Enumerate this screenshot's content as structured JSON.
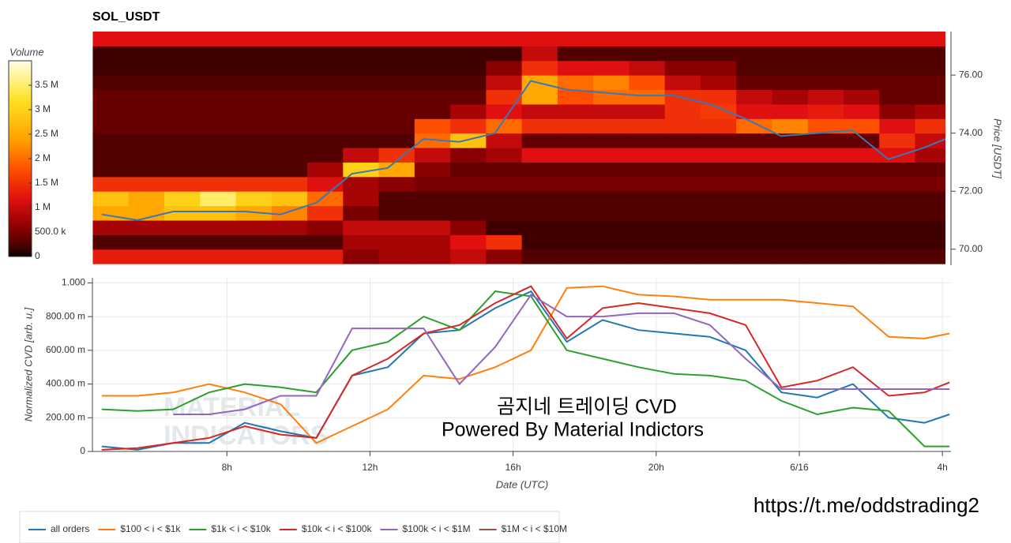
{
  "chart_data": [
    {
      "type": "heatmap",
      "title": "SOL_USDT",
      "xlim": [
        4.24,
        28.1
      ],
      "ylim": [
        69.45,
        77.5
      ],
      "x_bins": [
        4.25,
        5.25,
        6.25,
        7.25,
        8.25,
        9.25,
        10.25,
        11.25,
        12.25,
        13.25,
        14.25,
        15.25,
        16.25,
        17.25,
        18.25,
        19.25,
        20.25,
        21.25,
        22.25,
        23.25,
        24.25,
        25.25,
        26.25,
        27.25,
        28.25
      ],
      "y_bins": [
        69.5,
        70,
        70.5,
        71,
        71.5,
        72,
        72.5,
        73,
        73.5,
        74,
        74.5,
        75,
        75.5,
        76,
        76.5,
        77,
        77.5
      ],
      "z": [
        [
          1300000.0,
          1300000.0,
          1300000.0,
          1300000.0,
          1300000.0,
          1300000.0,
          1300000.0,
          600000.0,
          800000.0,
          800000.0,
          1000000.0,
          600000.0,
          300000.0,
          300000.0,
          300000.0,
          300000.0,
          300000.0,
          300000.0,
          300000.0,
          300000.0,
          300000.0,
          300000.0,
          300000.0,
          300000.0
        ],
        [
          300000.0,
          300000.0,
          300000.0,
          300000.0,
          300000.0,
          300000.0,
          300000.0,
          800000.0,
          800000.0,
          800000.0,
          1200000.0,
          1500000.0,
          200000.0,
          200000.0,
          200000.0,
          200000.0,
          200000.0,
          200000.0,
          200000.0,
          200000.0,
          200000.0,
          200000.0,
          200000.0,
          200000.0
        ],
        [
          800000.0,
          800000.0,
          800000.0,
          800000.0,
          800000.0,
          800000.0,
          600000.0,
          1000000.0,
          1000000.0,
          1000000.0,
          600000.0,
          200000.0,
          200000.0,
          200000.0,
          200000.0,
          200000.0,
          200000.0,
          200000.0,
          200000.0,
          200000.0,
          200000.0,
          200000.0,
          200000.0,
          200000.0
        ],
        [
          2500000.0,
          2500000.0,
          2800000.0,
          2800000.0,
          2500000.0,
          2200000.0,
          1500000.0,
          500000.0,
          300000.0,
          300000.0,
          300000.0,
          300000.0,
          300000.0,
          300000.0,
          300000.0,
          300000.0,
          300000.0,
          300000.0,
          300000.0,
          300000.0,
          300000.0,
          300000.0,
          300000.0,
          300000.0
        ],
        [
          2800000.0,
          2500000.0,
          3000000.0,
          3500000.0,
          3000000.0,
          2800000.0,
          2000000.0,
          800000.0,
          300000.0,
          300000.0,
          300000.0,
          300000.0,
          300000.0,
          300000.0,
          300000.0,
          300000.0,
          300000.0,
          300000.0,
          300000.0,
          300000.0,
          300000.0,
          300000.0,
          300000.0,
          300000.0
        ],
        [
          1500000.0,
          1500000.0,
          1500000.0,
          1500000.0,
          1500000.0,
          1500000.0,
          1200000.0,
          800000.0,
          600000.0,
          500000.0,
          500000.0,
          500000.0,
          500000.0,
          500000.0,
          500000.0,
          500000.0,
          500000.0,
          500000.0,
          500000.0,
          500000.0,
          500000.0,
          500000.0,
          500000.0,
          500000.0
        ],
        [
          300000.0,
          300000.0,
          300000.0,
          300000.0,
          300000.0,
          300000.0,
          800000.0,
          3000000.0,
          2500000.0,
          600000.0,
          400000.0,
          400000.0,
          400000.0,
          400000.0,
          400000.0,
          400000.0,
          400000.0,
          400000.0,
          400000.0,
          400000.0,
          400000.0,
          400000.0,
          400000.0,
          400000.0
        ],
        [
          300000.0,
          300000.0,
          300000.0,
          300000.0,
          300000.0,
          300000.0,
          300000.0,
          1000000.0,
          1500000.0,
          1000000.0,
          600000.0,
          800000.0,
          1200000.0,
          1200000.0,
          1200000.0,
          1200000.0,
          1200000.0,
          1200000.0,
          1200000.0,
          1200000.0,
          1200000.0,
          1200000.0,
          1200000.0,
          800000.0
        ],
        [
          300000.0,
          300000.0,
          300000.0,
          300000.0,
          300000.0,
          300000.0,
          300000.0,
          300000.0,
          300000.0,
          2000000.0,
          2800000.0,
          1000000.0,
          400000.0,
          400000.0,
          400000.0,
          400000.0,
          400000.0,
          400000.0,
          400000.0,
          400000.0,
          400000.0,
          400000.0,
          1500000.0,
          1000000.0
        ],
        [
          400000.0,
          400000.0,
          400000.0,
          400000.0,
          400000.0,
          400000.0,
          400000.0,
          400000.0,
          400000.0,
          1800000.0,
          1500000.0,
          2000000.0,
          1500000.0,
          1500000.0,
          1500000.0,
          1500000.0,
          1500000.0,
          1500000.0,
          2000000.0,
          2200000.0,
          1800000.0,
          1800000.0,
          1200000.0,
          1500000.0
        ],
        [
          400000.0,
          400000.0,
          400000.0,
          400000.0,
          400000.0,
          400000.0,
          400000.0,
          400000.0,
          400000.0,
          400000.0,
          800000.0,
          1200000.0,
          1000000.0,
          1000000.0,
          1000000.0,
          1000000.0,
          1500000.0,
          1600000.0,
          1200000.0,
          1200000.0,
          1300000.0,
          1200000.0,
          600000.0,
          800000.0
        ],
        [
          400000.0,
          400000.0,
          400000.0,
          400000.0,
          400000.0,
          400000.0,
          400000.0,
          400000.0,
          400000.0,
          400000.0,
          400000.0,
          1500000.0,
          2500000.0,
          1800000.0,
          2000000.0,
          2000000.0,
          1500000.0,
          1500000.0,
          1000000.0,
          800000.0,
          1000000.0,
          800000.0,
          400000.0,
          400000.0
        ],
        [
          300000.0,
          300000.0,
          300000.0,
          300000.0,
          300000.0,
          300000.0,
          300000.0,
          300000.0,
          300000.0,
          300000.0,
          300000.0,
          1000000.0,
          2500000.0,
          2000000.0,
          2200000.0,
          1800000.0,
          1000000.0,
          800000.0,
          400000.0,
          400000.0,
          400000.0,
          400000.0,
          400000.0,
          400000.0
        ],
        [
          200000.0,
          200000.0,
          200000.0,
          200000.0,
          200000.0,
          200000.0,
          200000.0,
          200000.0,
          200000.0,
          200000.0,
          200000.0,
          600000.0,
          1500000.0,
          1200000.0,
          1200000.0,
          1000000.0,
          600000.0,
          600000.0,
          300000.0,
          300000.0,
          300000.0,
          300000.0,
          300000.0,
          300000.0
        ],
        [
          200000.0,
          200000.0,
          200000.0,
          200000.0,
          200000.0,
          200000.0,
          200000.0,
          200000.0,
          200000.0,
          200000.0,
          200000.0,
          200000.0,
          1000000.0,
          300000.0,
          300000.0,
          300000.0,
          300000.0,
          300000.0,
          300000.0,
          300000.0,
          300000.0,
          300000.0,
          300000.0,
          300000.0
        ],
        [
          1200000.0,
          1200000.0,
          1200000.0,
          1200000.0,
          1200000.0,
          1200000.0,
          1200000.0,
          1200000.0,
          1200000.0,
          1200000.0,
          1200000.0,
          1200000.0,
          1200000.0,
          1200000.0,
          1200000.0,
          1200000.0,
          1200000.0,
          1200000.0,
          1200000.0,
          1200000.0,
          1200000.0,
          1200000.0,
          1200000.0,
          1200000.0
        ]
      ],
      "zlim": [
        0,
        4000000
      ],
      "zlabel": "Volume",
      "zticks": [
        0,
        {
          "value": 500000,
          "label": "500.0 k"
        },
        {
          "value": 1000000,
          "label": "1 M"
        },
        {
          "value": 1500000,
          "label": "1.5 M"
        },
        {
          "value": 2000000,
          "label": "2 M"
        },
        {
          "value": 2500000,
          "label": "2.5 M"
        },
        {
          "value": 3000000,
          "label": "3 M"
        },
        {
          "value": 3500000,
          "label": "3.5 M"
        }
      ],
      "ylabel": "Price [USDT]",
      "yticks": [
        {
          "value": 70,
          "label": "70.00"
        },
        {
          "value": 72,
          "label": "72.00"
        },
        {
          "value": 74,
          "label": "74.00"
        },
        {
          "value": 76,
          "label": "76.00"
        }
      ],
      "price": {
        "color": "#3a78b5",
        "x": [
          4.5,
          5.5,
          6.5,
          7.5,
          8.5,
          9.5,
          10.5,
          11.5,
          12.5,
          13.5,
          14.5,
          15.5,
          16.5,
          17.5,
          18.5,
          19.5,
          20.5,
          21.5,
          22.5,
          23.5,
          24.5,
          25.5,
          26.5,
          27.5,
          28.1
        ],
        "values": [
          71.2,
          71.0,
          71.3,
          71.3,
          71.3,
          71.2,
          71.6,
          72.6,
          72.8,
          73.8,
          73.7,
          74.0,
          75.8,
          75.5,
          75.4,
          75.3,
          75.3,
          75.0,
          74.5,
          73.9,
          74.0,
          74.1,
          73.1,
          73.5,
          73.8
        ]
      }
    },
    {
      "type": "line",
      "xlabel": "Date (UTC)",
      "ylabel": "Normalized CVD [arb. u.]",
      "xlim": [
        4.24,
        28.24
      ],
      "ylim": [
        0,
        1.03
      ],
      "xticks": [
        {
          "value": 8,
          "label": "8h"
        },
        {
          "value": 12,
          "label": "12h"
        },
        {
          "value": 16,
          "label": "16h"
        },
        {
          "value": 20,
          "label": "20h"
        },
        {
          "value": 24,
          "label": "6/16"
        },
        {
          "value": 28,
          "label": "4h"
        }
      ],
      "yticks": [
        0,
        {
          "value": 0.2,
          "label": "200.00 m"
        },
        {
          "value": 0.4,
          "label": "400.00 m"
        },
        {
          "value": 0.6,
          "label": "600.00 m"
        },
        {
          "value": 0.8,
          "label": "800.00 m"
        },
        {
          "value": 1,
          "label": "1.000"
        }
      ],
      "grid": true,
      "legend": "bottom-left",
      "x": [
        4.5,
        5.5,
        6.5,
        7.5,
        8.5,
        9.5,
        10.5,
        11.5,
        12.5,
        13.5,
        14.5,
        15.5,
        16.5,
        17.5,
        18.5,
        19.5,
        20.5,
        21.5,
        22.5,
        23.5,
        24.5,
        25.5,
        26.5,
        27.5,
        28.2
      ],
      "series": [
        {
          "name": "all orders",
          "color": "#1f77b4",
          "values": [
            0.03,
            0.01,
            0.05,
            0.05,
            0.17,
            0.12,
            0.08,
            0.45,
            0.5,
            0.7,
            0.72,
            0.85,
            0.95,
            0.65,
            0.78,
            0.72,
            0.7,
            0.68,
            0.6,
            0.35,
            0.32,
            0.4,
            0.2,
            0.17,
            0.22
          ]
        },
        {
          "name": "$100 < i < $1k",
          "color": "#ff7f0e",
          "values": [
            0.33,
            0.33,
            0.35,
            0.4,
            0.35,
            0.28,
            0.05,
            0.15,
            0.25,
            0.45,
            0.43,
            0.5,
            0.6,
            0.97,
            0.98,
            0.93,
            0.92,
            0.9,
            0.9,
            0.9,
            0.88,
            0.86,
            0.68,
            0.67,
            0.7
          ]
        },
        {
          "name": "$1k < i < $10k",
          "color": "#2ca02c",
          "values": [
            0.25,
            0.24,
            0.25,
            0.35,
            0.4,
            0.38,
            0.35,
            0.6,
            0.65,
            0.8,
            0.72,
            0.95,
            0.92,
            0.6,
            0.55,
            0.5,
            0.46,
            0.45,
            0.42,
            0.3,
            0.22,
            0.26,
            0.24,
            0.03,
            0.03
          ]
        },
        {
          "name": "$10k < i < $100k",
          "color": "#d62728",
          "values": [
            0.01,
            0.02,
            0.05,
            0.08,
            0.15,
            0.1,
            0.08,
            0.45,
            0.55,
            0.7,
            0.75,
            0.88,
            0.98,
            0.67,
            0.85,
            0.88,
            0.85,
            0.82,
            0.75,
            0.38,
            0.42,
            0.5,
            0.33,
            0.35,
            0.41
          ]
        },
        {
          "name": "$100k < i < $1M",
          "color": "#9467bd",
          "values": [
            null,
            null,
            0.22,
            0.22,
            0.25,
            0.33,
            0.33,
            0.73,
            0.73,
            0.73,
            0.4,
            0.62,
            0.93,
            0.8,
            0.8,
            0.82,
            0.82,
            0.75,
            0.55,
            0.37,
            0.37,
            0.37,
            0.37,
            0.37,
            0.37
          ]
        },
        {
          "name": "$1M < i < $10M",
          "color": "#8c564b",
          "values": [
            null,
            null,
            null,
            null,
            null,
            null,
            null,
            null,
            null,
            null,
            null,
            null,
            null,
            null,
            null,
            null,
            null,
            null,
            null,
            null,
            null,
            null,
            null,
            null,
            null
          ]
        }
      ],
      "watermark": [
        "MATERIAL",
        "INDICATORS"
      ],
      "annotations": [
        "곰지네 트레이딩 CVD",
        "Powered By Material Indictors",
        "https://t.me/oddstrading2"
      ]
    }
  ]
}
